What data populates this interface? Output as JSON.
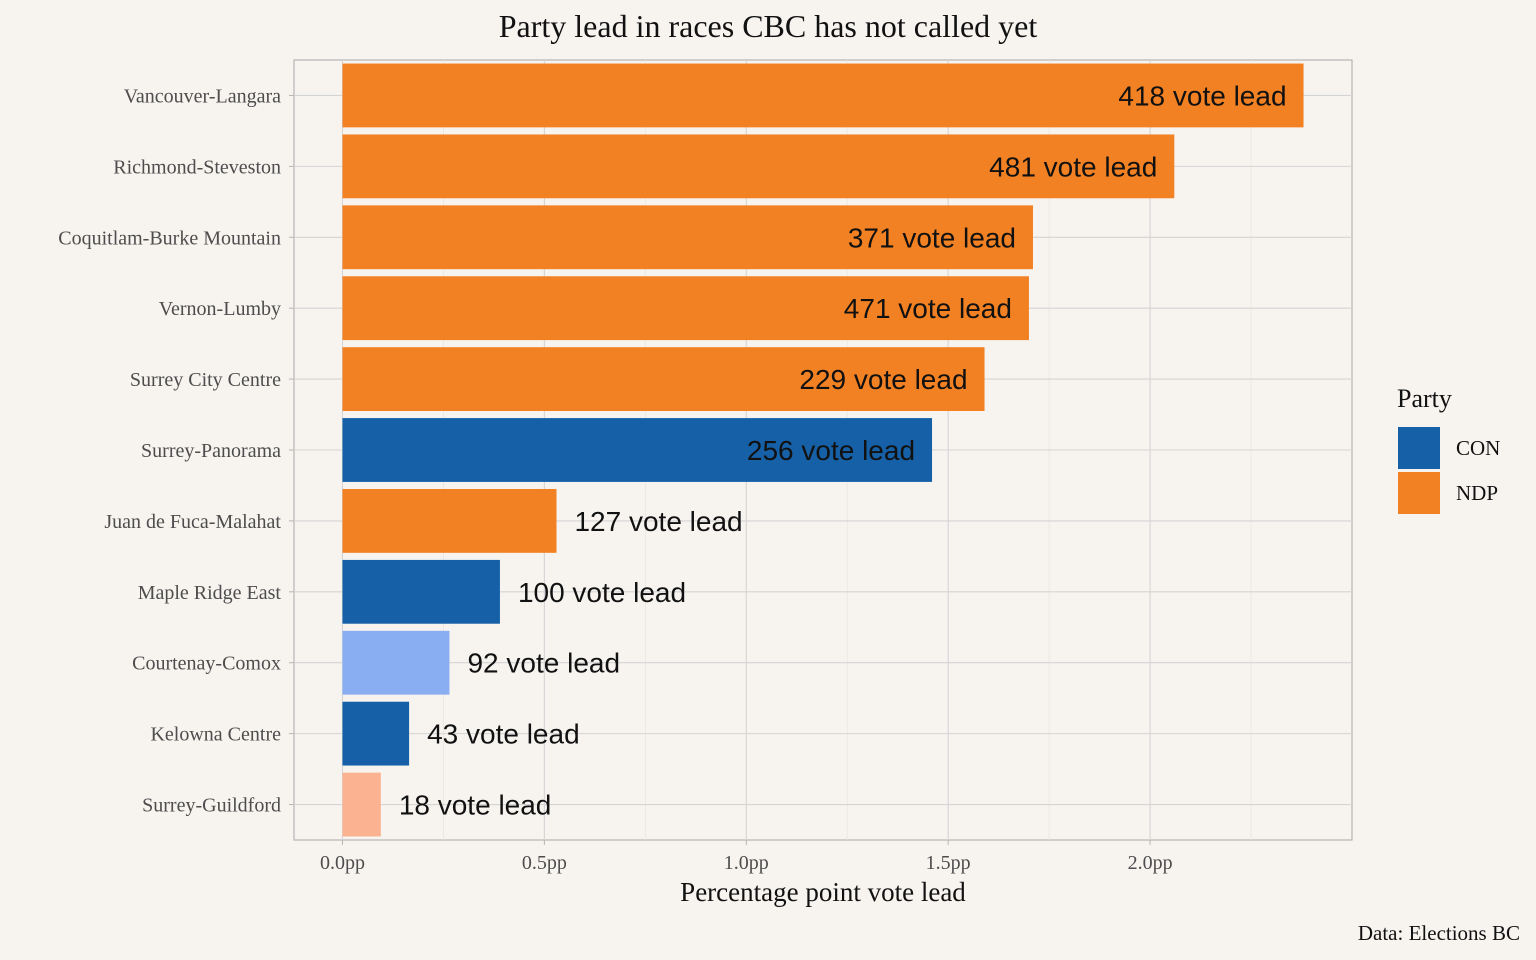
{
  "chart_data": {
    "type": "bar",
    "orientation": "horizontal",
    "title": "Party lead in races CBC has not called yet",
    "xlabel": "Percentage point vote lead",
    "ylabel": "",
    "xlim": [
      -0.12,
      2.5
    ],
    "x_ticks": [
      0.0,
      0.5,
      1.0,
      1.5,
      2.0
    ],
    "x_tick_labels": [
      "0.0pp",
      "0.5pp",
      "1.0pp",
      "1.5pp",
      "2.0pp"
    ],
    "grid": true,
    "legend_position": "right",
    "caption": "Data: Elections BC",
    "legend": {
      "title": "Party",
      "entries": [
        {
          "label": "CON",
          "color": "#1660a8"
        },
        {
          "label": "NDP",
          "color": "#f28123"
        }
      ]
    },
    "categories": [
      "Vancouver-Langara",
      "Richmond-Steveston",
      "Coquitlam-Burke Mountain",
      "Vernon-Lumby",
      "Surrey City Centre",
      "Surrey-Panorama",
      "Juan de Fuca-Malahat",
      "Maple Ridge East",
      "Courtenay-Comox",
      "Kelowna Centre",
      "Surrey-Guildford"
    ],
    "values": [
      2.38,
      2.06,
      1.71,
      1.7,
      1.59,
      1.46,
      0.53,
      0.39,
      0.265,
      0.165,
      0.095
    ],
    "labels": [
      "418 vote lead",
      "481 vote lead",
      "371 vote lead",
      "471 vote lead",
      "229 vote lead",
      "256 vote lead",
      "127 vote lead",
      "100 vote lead",
      "92 vote lead",
      "43 vote lead",
      "18 vote lead"
    ],
    "colors": [
      "#f28123",
      "#f28123",
      "#f28123",
      "#f28123",
      "#f28123",
      "#1660a8",
      "#f28123",
      "#1660a8",
      "#8aaef2",
      "#1660a8",
      "#fbb291"
    ]
  }
}
